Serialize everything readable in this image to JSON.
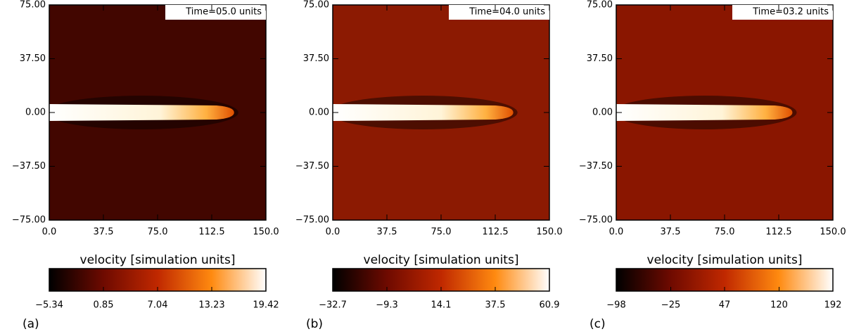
{
  "chart_data": [
    {
      "type": "image",
      "annotation": "Time=05.0 units",
      "panel_label": "(a)",
      "background": "#420600",
      "xlim": [
        0,
        150
      ],
      "xticks": [
        {
          "value": 0,
          "label": "0.0"
        },
        37.5,
        {
          "value": 75,
          "label": "75.0"
        },
        112.5,
        {
          "value": 150,
          "label": "150.0"
        }
      ],
      "ylim": [
        -75,
        75
      ],
      "yticks": [
        {
          "value": 75,
          "label": "75.00"
        },
        {
          "value": 37.5,
          "label": "37.50"
        },
        {
          "value": 0,
          "label": "0.00"
        },
        {
          "value": -37.5,
          "label": "−37.50"
        },
        {
          "value": -75,
          "label": "−75.00"
        }
      ],
      "colorbar_label": "velocity [simulation units]",
      "colormap": [
        "#000000",
        "#6e0a00",
        "#c02800",
        "#ff8a10",
        "#ffffff"
      ],
      "clim": [
        -5.34,
        19.42
      ],
      "cticks": [
        {
          "value": -5.34,
          "label": "−5.34"
        },
        0.85,
        7.04,
        13.23,
        19.42
      ]
    },
    {
      "type": "image",
      "annotation": "Time=04.0 units",
      "panel_label": "(b)",
      "background": "#8c1a02",
      "xlim": [
        0,
        150
      ],
      "xticks": [
        {
          "value": 0,
          "label": "0.0"
        },
        37.5,
        {
          "value": 75,
          "label": "75.0"
        },
        112.5,
        {
          "value": 150,
          "label": "150.0"
        }
      ],
      "ylim": [
        -75,
        75
      ],
      "yticks": [
        {
          "value": 75,
          "label": "75.00"
        },
        {
          "value": 37.5,
          "label": "37.50"
        },
        {
          "value": 0,
          "label": "0.00"
        },
        {
          "value": -37.5,
          "label": "−37.50"
        },
        {
          "value": -75,
          "label": "−75.00"
        }
      ],
      "colorbar_label": "velocity [simulation units]",
      "colormap": [
        "#000000",
        "#6e0a00",
        "#c02800",
        "#ff8a10",
        "#ffffff"
      ],
      "clim": [
        -32.7,
        60.9
      ],
      "cticks": [
        {
          "value": -32.7,
          "label": "−32.7"
        },
        {
          "value": -9.3,
          "label": "−9.3"
        },
        14.1,
        37.5,
        60.9
      ]
    },
    {
      "type": "image",
      "annotation": "Time=03.2 units",
      "panel_label": "(c)",
      "background": "#8a1600",
      "xlim": [
        0,
        150
      ],
      "xticks": [
        {
          "value": 0,
          "label": "0.0"
        },
        37.5,
        {
          "value": 75,
          "label": "75.0"
        },
        112.5,
        {
          "value": 150,
          "label": "150.0"
        }
      ],
      "ylim": [
        -75,
        75
      ],
      "yticks": [
        {
          "value": 75,
          "label": "75.00"
        },
        {
          "value": 37.5,
          "label": "37.50"
        },
        {
          "value": 0,
          "label": "0.00"
        },
        {
          "value": -37.5,
          "label": "−37.50"
        },
        {
          "value": -75,
          "label": "−75.00"
        }
      ],
      "colorbar_label": "velocity [simulation units]",
      "colormap": [
        "#000000",
        "#6e0a00",
        "#c02800",
        "#ff8a10",
        "#ffffff"
      ],
      "clim": [
        -98,
        192
      ],
      "cticks": [
        {
          "value": -98,
          "label": "−98"
        },
        {
          "value": -25,
          "label": "−25"
        },
        47,
        120,
        192
      ]
    }
  ]
}
